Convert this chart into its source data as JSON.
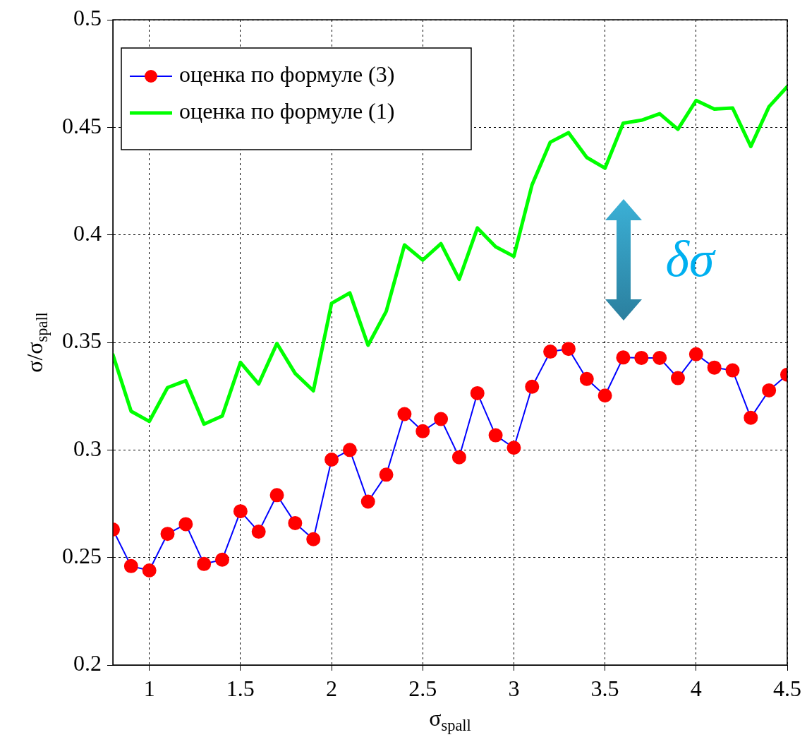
{
  "chart_data": {
    "type": "line",
    "xlabel": "σ$_{spall}$",
    "ylabel": "σ/σ$_{spall}$",
    "x": [
      0.8,
      0.9,
      1.0,
      1.1,
      1.2,
      1.3,
      1.4,
      1.5,
      1.6,
      1.7,
      1.8,
      1.9,
      2.0,
      2.1,
      2.2,
      2.3,
      2.4,
      2.5,
      2.6,
      2.7,
      2.8,
      2.9,
      3.0,
      3.1,
      3.2,
      3.3,
      3.4,
      3.5,
      3.6,
      3.7,
      3.8,
      3.9,
      4.0,
      4.1,
      4.2,
      4.3,
      4.4,
      4.5
    ],
    "series": [
      {
        "name": "оценка по формуле (3)",
        "color": "#0000ff",
        "marker": "circle",
        "colors": [
          "#ff0000",
          "#ff0000",
          "#ff0000",
          "#ff0000",
          "#ff0000",
          "#ff0000",
          "#ff0000",
          "#ff0000",
          "#ff0000",
          "#ff0000",
          "#ff0000",
          "#ff0000",
          "#ff0000",
          "#ff0000",
          "#ff0000",
          "#ff0000",
          "#ff0000",
          "#ff0000",
          "#ff0000",
          "#ff0000",
          "#ff0000",
          "#ff0000",
          "#ff0000",
          "#ff0000",
          "#ff0000",
          "#ff0000",
          "#ff0000",
          "#ff0000",
          "#ff0000",
          "#ff0000",
          "#ff0000",
          "#ff0000",
          "#ff0000",
          "#ff0000",
          "#ff0000",
          "#ff0000",
          "#ff0000",
          "#ff0000"
        ],
        "values": [
          0.263,
          0.246,
          0.244,
          0.261,
          0.2655,
          0.247,
          0.249,
          0.2715,
          0.262,
          0.279,
          0.266,
          0.2585,
          0.2955,
          0.3,
          0.276,
          0.2885,
          0.3167,
          0.3087,
          0.3144,
          0.2966,
          0.3264,
          0.3068,
          0.301,
          0.3294,
          0.3457,
          0.347,
          0.333,
          0.3253,
          0.343,
          0.3428,
          0.3428,
          0.3334,
          0.3445,
          0.3383,
          0.337,
          0.315,
          0.3277,
          0.335
        ]
      },
      {
        "name": "оценка по формуле (1)",
        "color": "#00ff00",
        "marker": "none",
        "values": [
          0.3443,
          0.318,
          0.3133,
          0.329,
          0.3322,
          0.312,
          0.3158,
          0.3407,
          0.3307,
          0.3495,
          0.3356,
          0.3275,
          0.3682,
          0.373,
          0.3487,
          0.3645,
          0.3953,
          0.3883,
          0.3959,
          0.3793,
          0.4032,
          0.3945,
          0.39,
          0.4233,
          0.4431,
          0.4475,
          0.436,
          0.431,
          0.4519,
          0.4533,
          0.4563,
          0.4491,
          0.4625,
          0.4585,
          0.459,
          0.4411,
          0.4596,
          0.4689
        ]
      }
    ],
    "xlim": [
      0.8,
      4.5
    ],
    "xticks": [
      1,
      1.5,
      2,
      2.5,
      3,
      3.5,
      4,
      4.5
    ],
    "ylim": [
      0.2,
      0.5
    ],
    "yticks": [
      0.2,
      0.25,
      0.3,
      0.35,
      0.4,
      0.45,
      0.5
    ],
    "grid": true,
    "legend": "top left",
    "line_style": "solid",
    "annotations": [
      "δσ"
    ]
  }
}
